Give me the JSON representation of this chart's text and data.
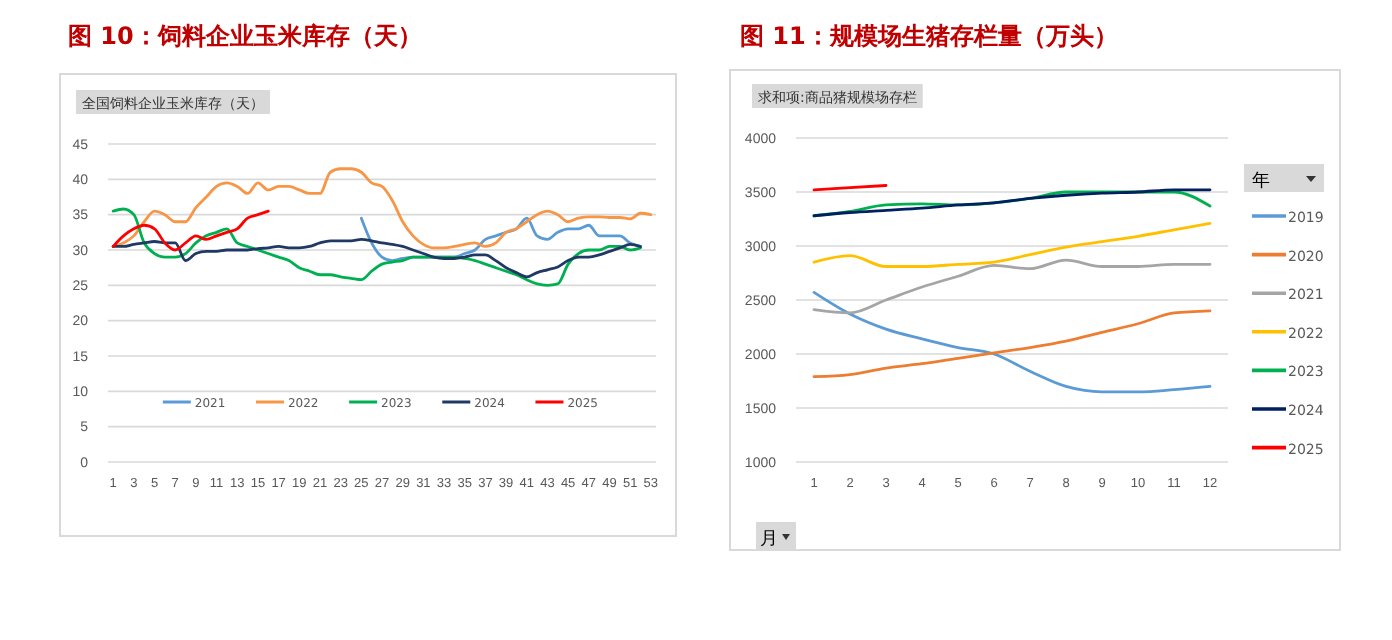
{
  "chart_data": [
    {
      "type": "line",
      "title": "图 10：饲料企业玉米库存（天）",
      "subtitle": "全国饲料企业玉米库存（天）",
      "x": [
        1,
        2,
        3,
        4,
        5,
        6,
        7,
        8,
        9,
        10,
        11,
        12,
        13,
        14,
        15,
        16,
        17,
        18,
        19,
        20,
        21,
        22,
        23,
        24,
        25,
        26,
        27,
        28,
        29,
        30,
        31,
        32,
        33,
        34,
        35,
        36,
        37,
        38,
        39,
        40,
        41,
        42,
        43,
        44,
        45,
        46,
        47,
        48,
        49,
        50,
        51,
        52,
        53
      ],
      "xlim": [
        0.5,
        53.5
      ],
      "xticks": [
        1,
        3,
        5,
        7,
        9,
        11,
        13,
        15,
        17,
        19,
        21,
        23,
        25,
        27,
        29,
        31,
        33,
        35,
        37,
        39,
        41,
        43,
        45,
        47,
        49,
        51,
        53
      ],
      "ylim": [
        0,
        45
      ],
      "yticks": [
        0,
        5,
        10,
        15,
        20,
        25,
        30,
        35,
        40,
        45
      ],
      "grid": "y",
      "legend": "bottom",
      "series": [
        {
          "name": "2021",
          "color": "#5b9bd5",
          "values": [
            null,
            null,
            null,
            null,
            null,
            null,
            null,
            null,
            null,
            null,
            null,
            null,
            null,
            null,
            null,
            null,
            null,
            null,
            null,
            null,
            null,
            null,
            null,
            null,
            34.5,
            31,
            29,
            28.5,
            28.8,
            29,
            29,
            29,
            29,
            29,
            29.5,
            30,
            31.5,
            32,
            32.5,
            33,
            34.5,
            32,
            31.5,
            32.5,
            33,
            33,
            33.5,
            32,
            32,
            32,
            31,
            30.5,
            null
          ]
        },
        {
          "name": "2022",
          "color": "#f79646",
          "values": [
            30.5,
            31,
            32,
            34,
            35.5,
            35,
            34,
            34,
            36,
            37.5,
            39,
            39.5,
            39,
            38,
            39.5,
            38.5,
            39,
            39,
            38.5,
            38,
            38,
            41,
            41.5,
            41.5,
            41,
            39.5,
            39,
            37,
            34,
            32,
            30.8,
            30.3,
            30.3,
            30.5,
            30.8,
            31,
            30.5,
            31,
            32.5,
            33,
            34,
            35,
            35.5,
            35,
            34,
            34.5,
            34.7,
            34.7,
            34.6,
            34.6,
            34.4,
            35.2,
            35
          ]
        },
        {
          "name": "2023",
          "color": "#00b050",
          "values": [
            35.5,
            35.8,
            35,
            31,
            29.5,
            29,
            29,
            29.5,
            31,
            32,
            32.5,
            33,
            31,
            30.5,
            30,
            29.5,
            29,
            28.5,
            27.5,
            27,
            26.5,
            26.5,
            26.2,
            26,
            25.8,
            27,
            28,
            28.3,
            28.5,
            29,
            29,
            29,
            29,
            29,
            28.8,
            28.5,
            28,
            27.5,
            27,
            26.5,
            25.8,
            25.2,
            25,
            25.2,
            28,
            29.5,
            30,
            30,
            30.5,
            30.5,
            30,
            30.3,
            null
          ]
        },
        {
          "name": "2024",
          "color": "#1f3864",
          "values": [
            30.5,
            30.5,
            30.8,
            31,
            31.2,
            31,
            31,
            28.5,
            29.5,
            29.8,
            29.8,
            30,
            30,
            30,
            30.2,
            30.3,
            30.5,
            30.3,
            30.3,
            30.5,
            31,
            31.3,
            31.3,
            31.3,
            31.5,
            31.3,
            31,
            30.8,
            30.5,
            30,
            29.5,
            29,
            28.8,
            28.8,
            29,
            29.3,
            29.3,
            28.5,
            27.5,
            26.8,
            26.2,
            26.8,
            27.2,
            27.6,
            28.5,
            29,
            29,
            29.3,
            29.8,
            30.3,
            30.8,
            30.5,
            null
          ]
        },
        {
          "name": "2025",
          "color": "#ff0000",
          "values": [
            30.5,
            32,
            33,
            33.5,
            33,
            31,
            30,
            31,
            32,
            31.5,
            32,
            32.5,
            33,
            34.5,
            35,
            35.5,
            null,
            null,
            null,
            null,
            null,
            null,
            null,
            null,
            null,
            null,
            null,
            null,
            null,
            null,
            null,
            null,
            null,
            null,
            null,
            null,
            null,
            null,
            null,
            null,
            null,
            null,
            null,
            null,
            null,
            null,
            null,
            null,
            null,
            null,
            null,
            null,
            null
          ]
        }
      ]
    },
    {
      "type": "line",
      "title": "图 11：规模场生猪存栏量（万头）",
      "subtitle": "求和项:商品猪规模场存栏",
      "xlabel": "月",
      "legend_title": "年",
      "x": [
        1,
        2,
        3,
        4,
        5,
        6,
        7,
        8,
        9,
        10,
        11,
        12
      ],
      "xlim": [
        0.5,
        12.5
      ],
      "xticks": [
        1,
        2,
        3,
        4,
        5,
        6,
        7,
        8,
        9,
        10,
        11,
        12
      ],
      "ylim": [
        1000,
        4000
      ],
      "yticks": [
        1000,
        1500,
        2000,
        2500,
        3000,
        3500,
        4000
      ],
      "grid": "y",
      "legend": "right",
      "series": [
        {
          "name": "2019",
          "color": "#5b9bd5",
          "values": [
            2570,
            2370,
            2230,
            2140,
            2060,
            2000,
            1840,
            1700,
            1650,
            1650,
            1670,
            1700
          ]
        },
        {
          "name": "2020",
          "color": "#ed7d31",
          "values": [
            1790,
            1810,
            1870,
            1910,
            1960,
            2010,
            2060,
            2120,
            2200,
            2280,
            2380,
            2400
          ]
        },
        {
          "name": "2021",
          "color": "#a5a5a5",
          "values": [
            2410,
            2380,
            2500,
            2620,
            2720,
            2820,
            2790,
            2870,
            2810,
            2810,
            2830,
            2830
          ]
        },
        {
          "name": "2022",
          "color": "#ffc000",
          "values": [
            2850,
            2910,
            2810,
            2810,
            2830,
            2850,
            2920,
            2990,
            3040,
            3090,
            3150,
            3210
          ]
        },
        {
          "name": "2023",
          "color": "#00b050",
          "values": [
            3280,
            3320,
            3380,
            3390,
            3380,
            3400,
            3440,
            3500,
            3500,
            3500,
            3500,
            3370
          ]
        },
        {
          "name": "2024",
          "color": "#002060",
          "values": [
            3280,
            3310,
            3330,
            3350,
            3380,
            3400,
            3440,
            3470,
            3490,
            3500,
            3520,
            3520
          ]
        },
        {
          "name": "2025",
          "color": "#ff0000",
          "values": [
            3520,
            3540,
            3560,
            null,
            null,
            null,
            null,
            null,
            null,
            null,
            null,
            null
          ]
        }
      ]
    }
  ]
}
